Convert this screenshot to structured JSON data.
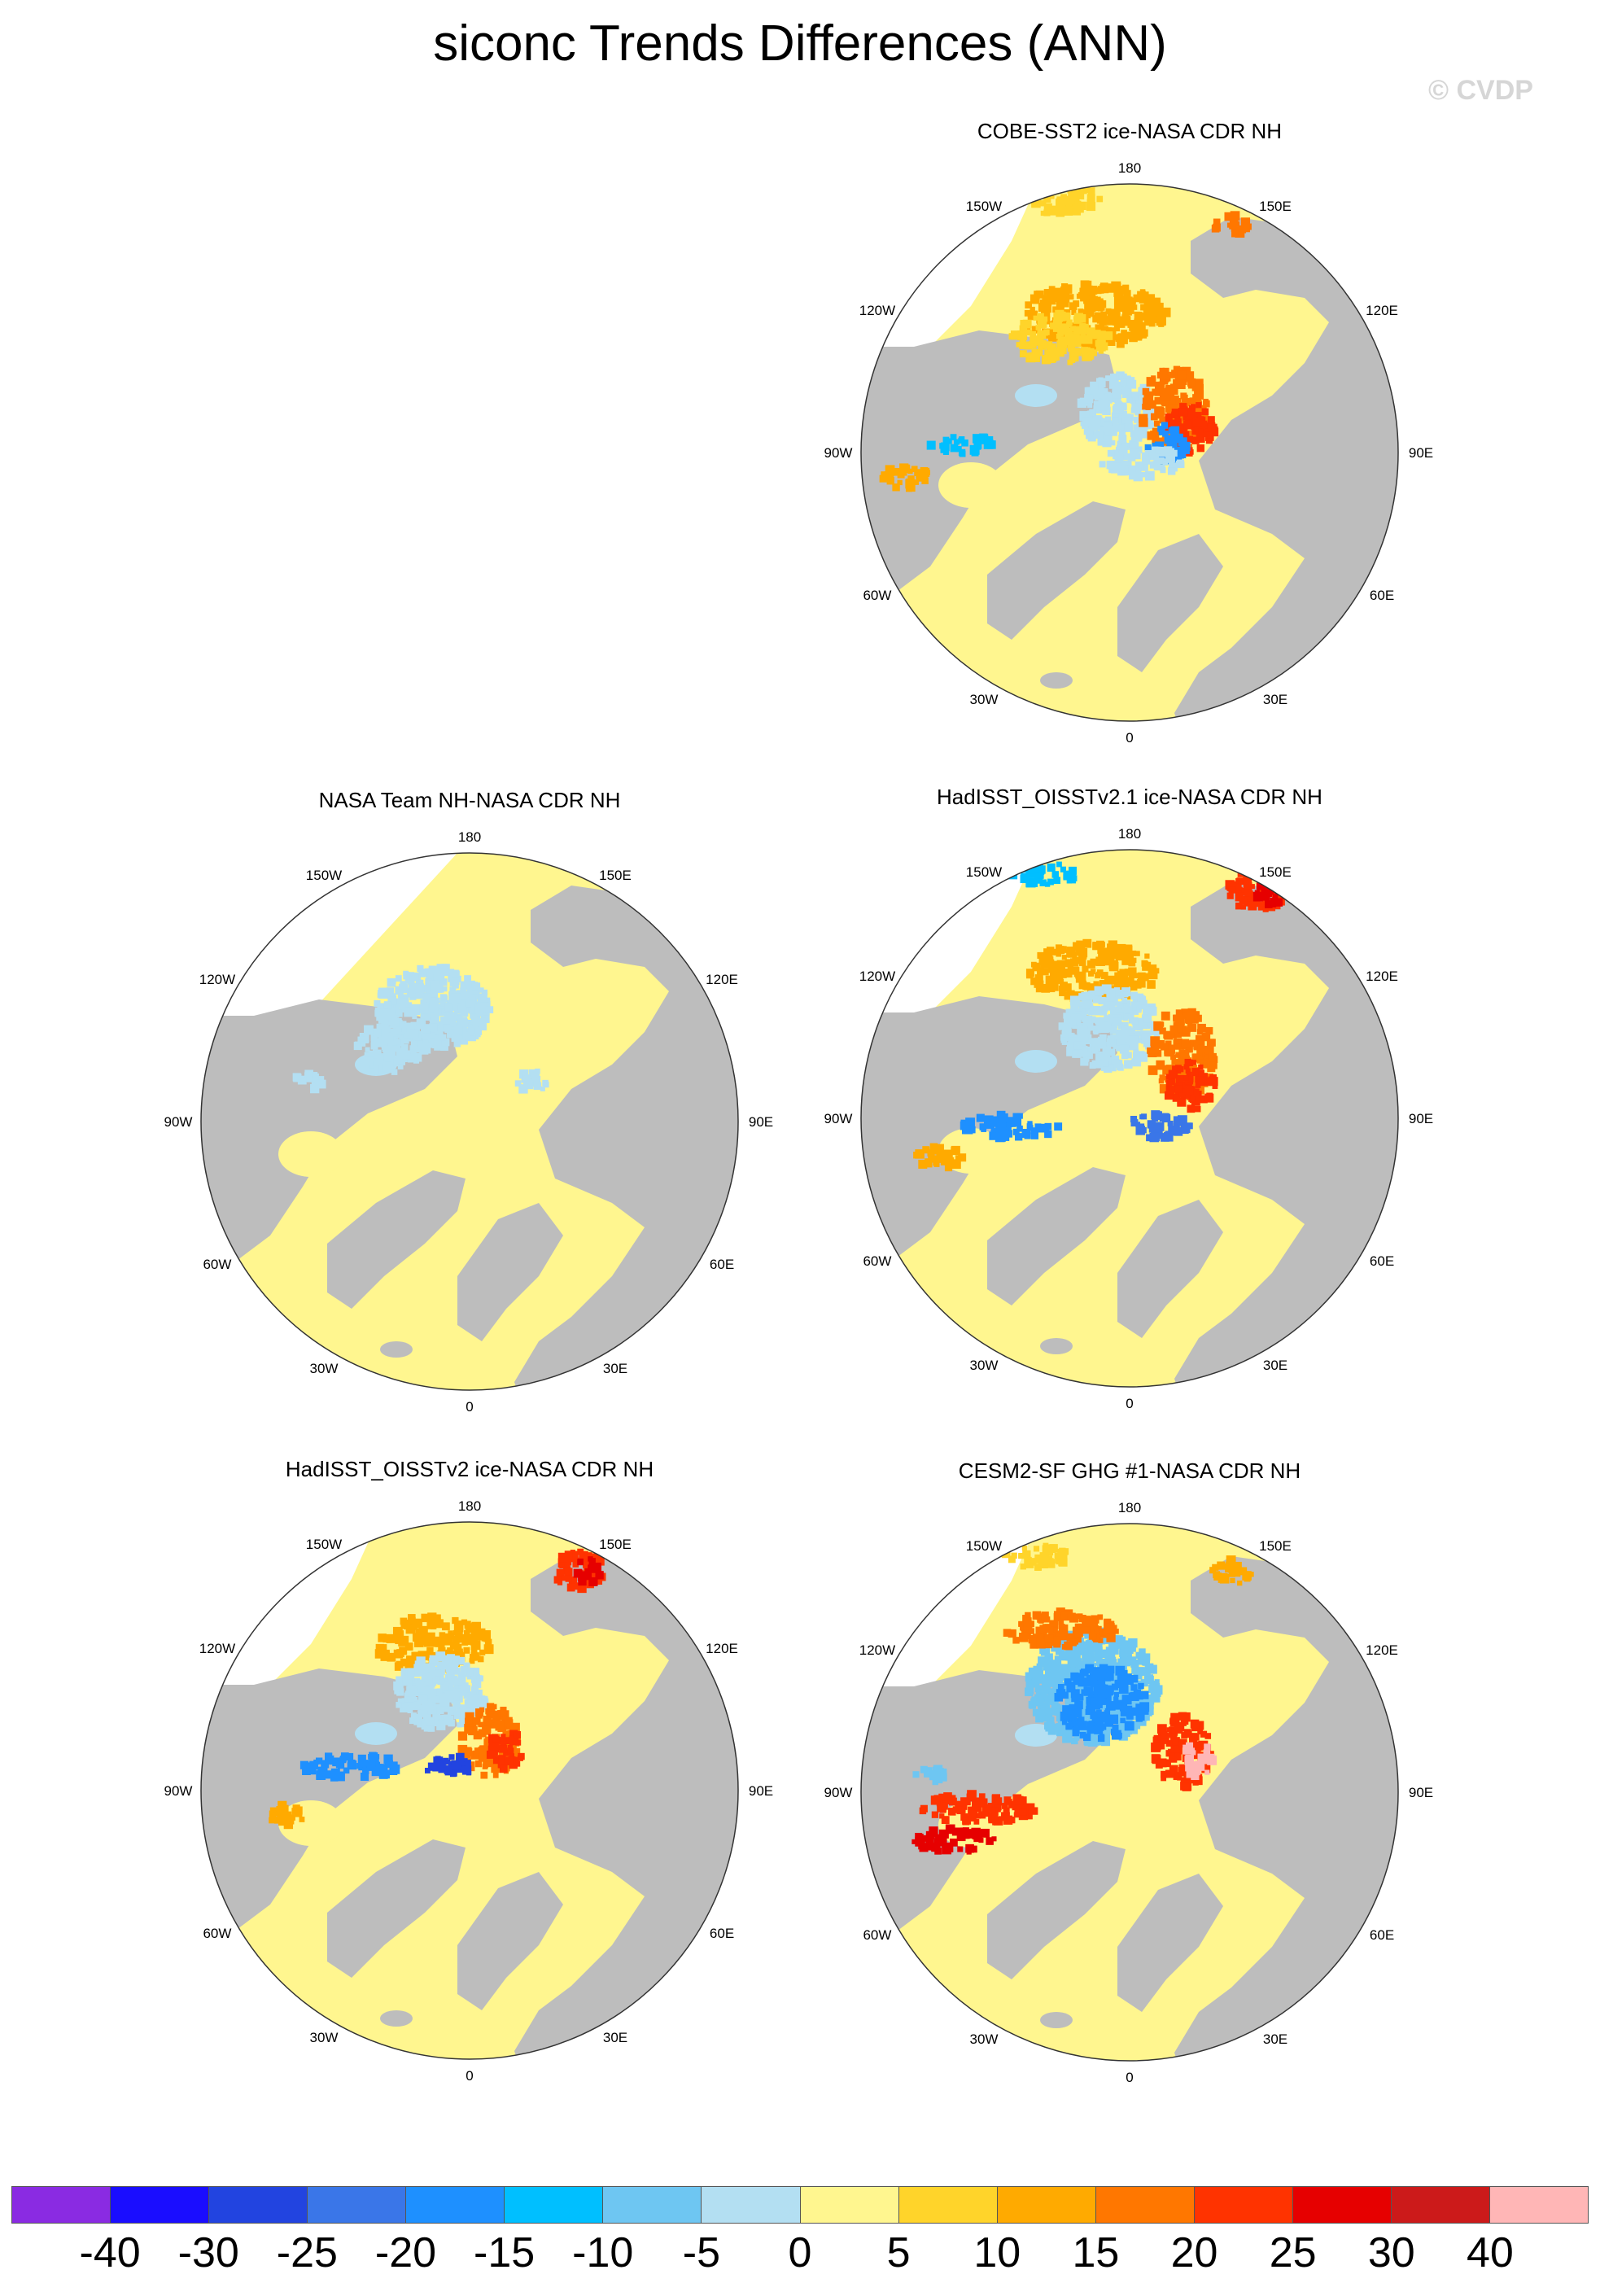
{
  "figure": {
    "title": "siconc Trends Differences (ANN)",
    "watermark": "© CVDP"
  },
  "lon_labels": [
    "180",
    "150E",
    "120E",
    "90E",
    "60E",
    "30E",
    "0",
    "30W",
    "60W",
    "90W",
    "120W",
    "150W"
  ],
  "panels": [
    {
      "title": "COBE-SST2 ice-NASA CDR NH",
      "pattern": "cobe"
    },
    {
      "title": "NASA Team NH-NASA CDR NH",
      "pattern": "nasateam"
    },
    {
      "title": "HadISST_OISSTv2.1 ice-NASA CDR NH",
      "pattern": "had21"
    },
    {
      "title": "HadISST_OISSTv2 ice-NASA CDR NH",
      "pattern": "had2"
    },
    {
      "title": "CESM2-SF GHG #1-NASA CDR NH",
      "pattern": "cesm"
    }
  ],
  "colorbar": {
    "labels": [
      "-40",
      "-30",
      "-25",
      "-20",
      "-15",
      "-10",
      "-5",
      "0",
      "5",
      "10",
      "15",
      "20",
      "25",
      "30",
      "40"
    ],
    "colors": [
      "#8a2be2",
      "#1a0dff",
      "#2244e0",
      "#3a76e8",
      "#1e90ff",
      "#00bfff",
      "#6ec6f2",
      "#b3dff2",
      "#fff68f",
      "#ffd42a",
      "#ffaa00",
      "#ff7700",
      "#ff3300",
      "#e60000",
      "#cc1a1a",
      "#ffb6b6"
    ]
  },
  "colors": {
    "land": "#bdbdbd",
    "ocean_positive_small": "#fff68f",
    "ocean_negative_small": "#b3dff2"
  }
}
